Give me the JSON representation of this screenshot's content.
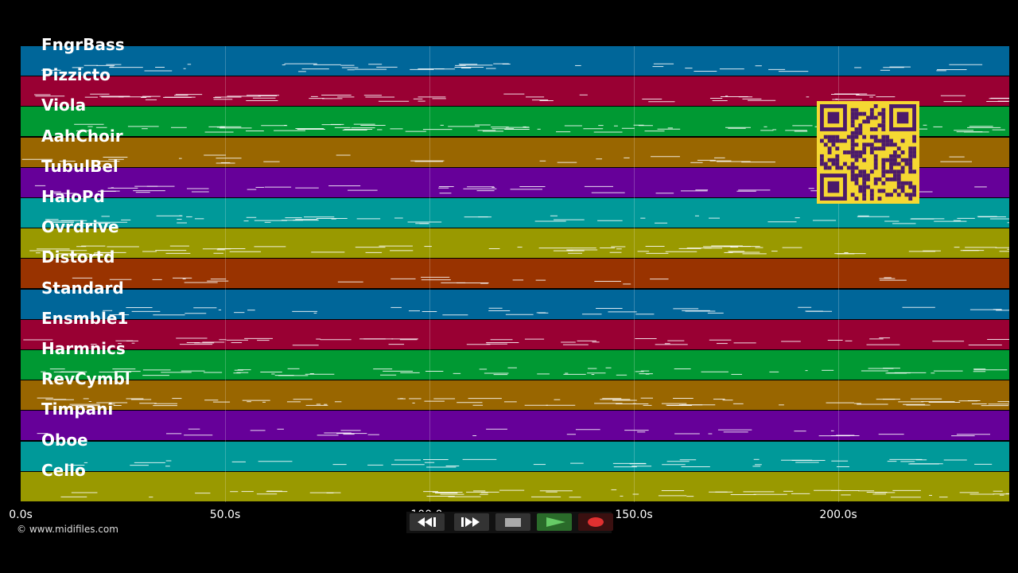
{
  "app": {
    "copyright": "© www.midifiles.com"
  },
  "tracks": [
    {
      "name": "FngrBass",
      "color": "#006699"
    },
    {
      "name": "Pizzicto",
      "color": "#990033"
    },
    {
      "name": "Viola",
      "color": "#009933"
    },
    {
      "name": "AahChoir",
      "color": "#996600"
    },
    {
      "name": "TubulBel",
      "color": "#660099"
    },
    {
      "name": "HaloPd",
      "color": "#009999"
    },
    {
      "name": "Ovrdrive",
      "color": "#999900"
    },
    {
      "name": "Distortd",
      "color": "#993300"
    },
    {
      "name": "Standard",
      "color": "#006699"
    },
    {
      "name": "Ensmble1",
      "color": "#990033"
    },
    {
      "name": "Harmnics",
      "color": "#009933"
    },
    {
      "name": "RevCymbl",
      "color": "#996600"
    },
    {
      "name": "Timpani",
      "color": "#660099"
    },
    {
      "name": "Oboe",
      "color": "#009999"
    },
    {
      "name": "Cello",
      "color": "#999900"
    }
  ],
  "axis": {
    "ticks": [
      "0.0s",
      "50.0s",
      "100.0s",
      "150.0s",
      "200.0s"
    ]
  },
  "transport": {
    "rewind": "rewind-icon",
    "fast_forward": "fast-forward-icon",
    "stop": "stop-icon",
    "play": "play-icon",
    "record": "record-icon"
  },
  "qr_icon": "qr-code"
}
